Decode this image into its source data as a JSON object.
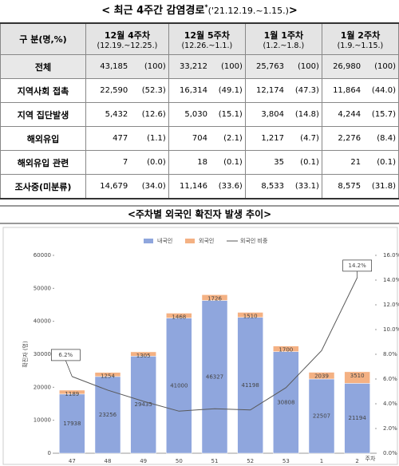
{
  "table": {
    "title": {
      "main": "< 최근 4주간 감염경로",
      "mark": "*",
      "period": "('21.12.19.~1.15.)",
      "close": ">"
    },
    "header": {
      "label": "구 분(명,%)",
      "weeks": [
        {
          "week": "12월 4주차",
          "range": "(12.19.~12.25.)"
        },
        {
          "week": "12월 5주차",
          "range": "(12.26.~1.1.)"
        },
        {
          "week": "1월 1주차",
          "range": "(1.2.~1.8.)"
        },
        {
          "week": "1월 2주차",
          "range": "(1.9.~1.15.)"
        }
      ]
    },
    "rows": [
      {
        "label": "전체",
        "cells": [
          "43,185",
          "(100)",
          "33,212",
          "(100)",
          "25,763",
          "(100)",
          "26,980",
          "(100)"
        ]
      },
      {
        "label": "지역사회 접촉",
        "cells": [
          "22,590",
          "(52.3)",
          "16,314",
          "(49.1)",
          "12,174",
          "(47.3)",
          "11,864",
          "(44.0)"
        ]
      },
      {
        "label": "지역 집단발생",
        "cells": [
          "5,432",
          "(12.6)",
          "5,030",
          "(15.1)",
          "3,804",
          "(14.8)",
          "4,244",
          "(15.7)"
        ]
      },
      {
        "label": "해외유입",
        "cells": [
          "477",
          "(1.1)",
          "704",
          "(2.1)",
          "1,217",
          "(4.7)",
          "2,276",
          "(8.4)"
        ]
      },
      {
        "label": "해외유입 관련",
        "cells": [
          "7",
          "(0.0)",
          "18",
          "(0.1)",
          "35",
          "(0.1)",
          "21",
          "(0.1)"
        ]
      },
      {
        "label": "조사중(미분류)",
        "cells": [
          "14,679",
          "(34.0)",
          "11,146",
          "(33.6)",
          "8,533",
          "(33.1)",
          "8,575",
          "(31.8)"
        ]
      }
    ]
  },
  "chart_data": {
    "type": "bar",
    "stacked": true,
    "title": "<주차별 외국인 확진자 발생 추이>",
    "y_label": "확진자 (명)",
    "x_label": "주차",
    "categories": [
      "47",
      "48",
      "49",
      "50",
      "51",
      "52",
      "53",
      "1",
      "2"
    ],
    "series": [
      {
        "name": "내국인",
        "color": "#8fa6dd",
        "values": [
          17938,
          23256,
          29435,
          41000,
          46327,
          41198,
          30808,
          22507,
          21194
        ]
      },
      {
        "name": "외국인",
        "color": "#f4b183",
        "values": [
          1189,
          1254,
          1305,
          1468,
          1726,
          1510,
          1700,
          2039,
          3510
        ]
      },
      {
        "name": "외국인 비중",
        "type": "line",
        "axis": "y2",
        "color": "#595959",
        "values": [
          6.2,
          5.1,
          4.2,
          3.4,
          3.6,
          3.5,
          5.3,
          8.3,
          14.2
        ],
        "value_labels": [
          "6.2%",
          null,
          null,
          null,
          null,
          null,
          null,
          null,
          "14.2%"
        ]
      }
    ],
    "ylim": [
      0,
      60000
    ],
    "yticks": [
      0,
      10000,
      20000,
      30000,
      40000,
      50000,
      60000
    ],
    "y2lim": [
      0,
      16
    ],
    "y2ticks": [
      {
        "value": 0,
        "label": "0.0%"
      },
      {
        "value": 2,
        "label": "2.0%"
      },
      {
        "value": 4,
        "label": "4.0%"
      },
      {
        "value": 6,
        "label": "6.0%"
      },
      {
        "value": 8,
        "label": "8.0%"
      },
      {
        "value": 10,
        "label": "10.0%"
      },
      {
        "value": 12,
        "label": "12.0%"
      },
      {
        "value": 14,
        "label": "14.0%"
      },
      {
        "value": 16,
        "label": "16.0%"
      }
    ],
    "grid": false,
    "legend": "top"
  }
}
